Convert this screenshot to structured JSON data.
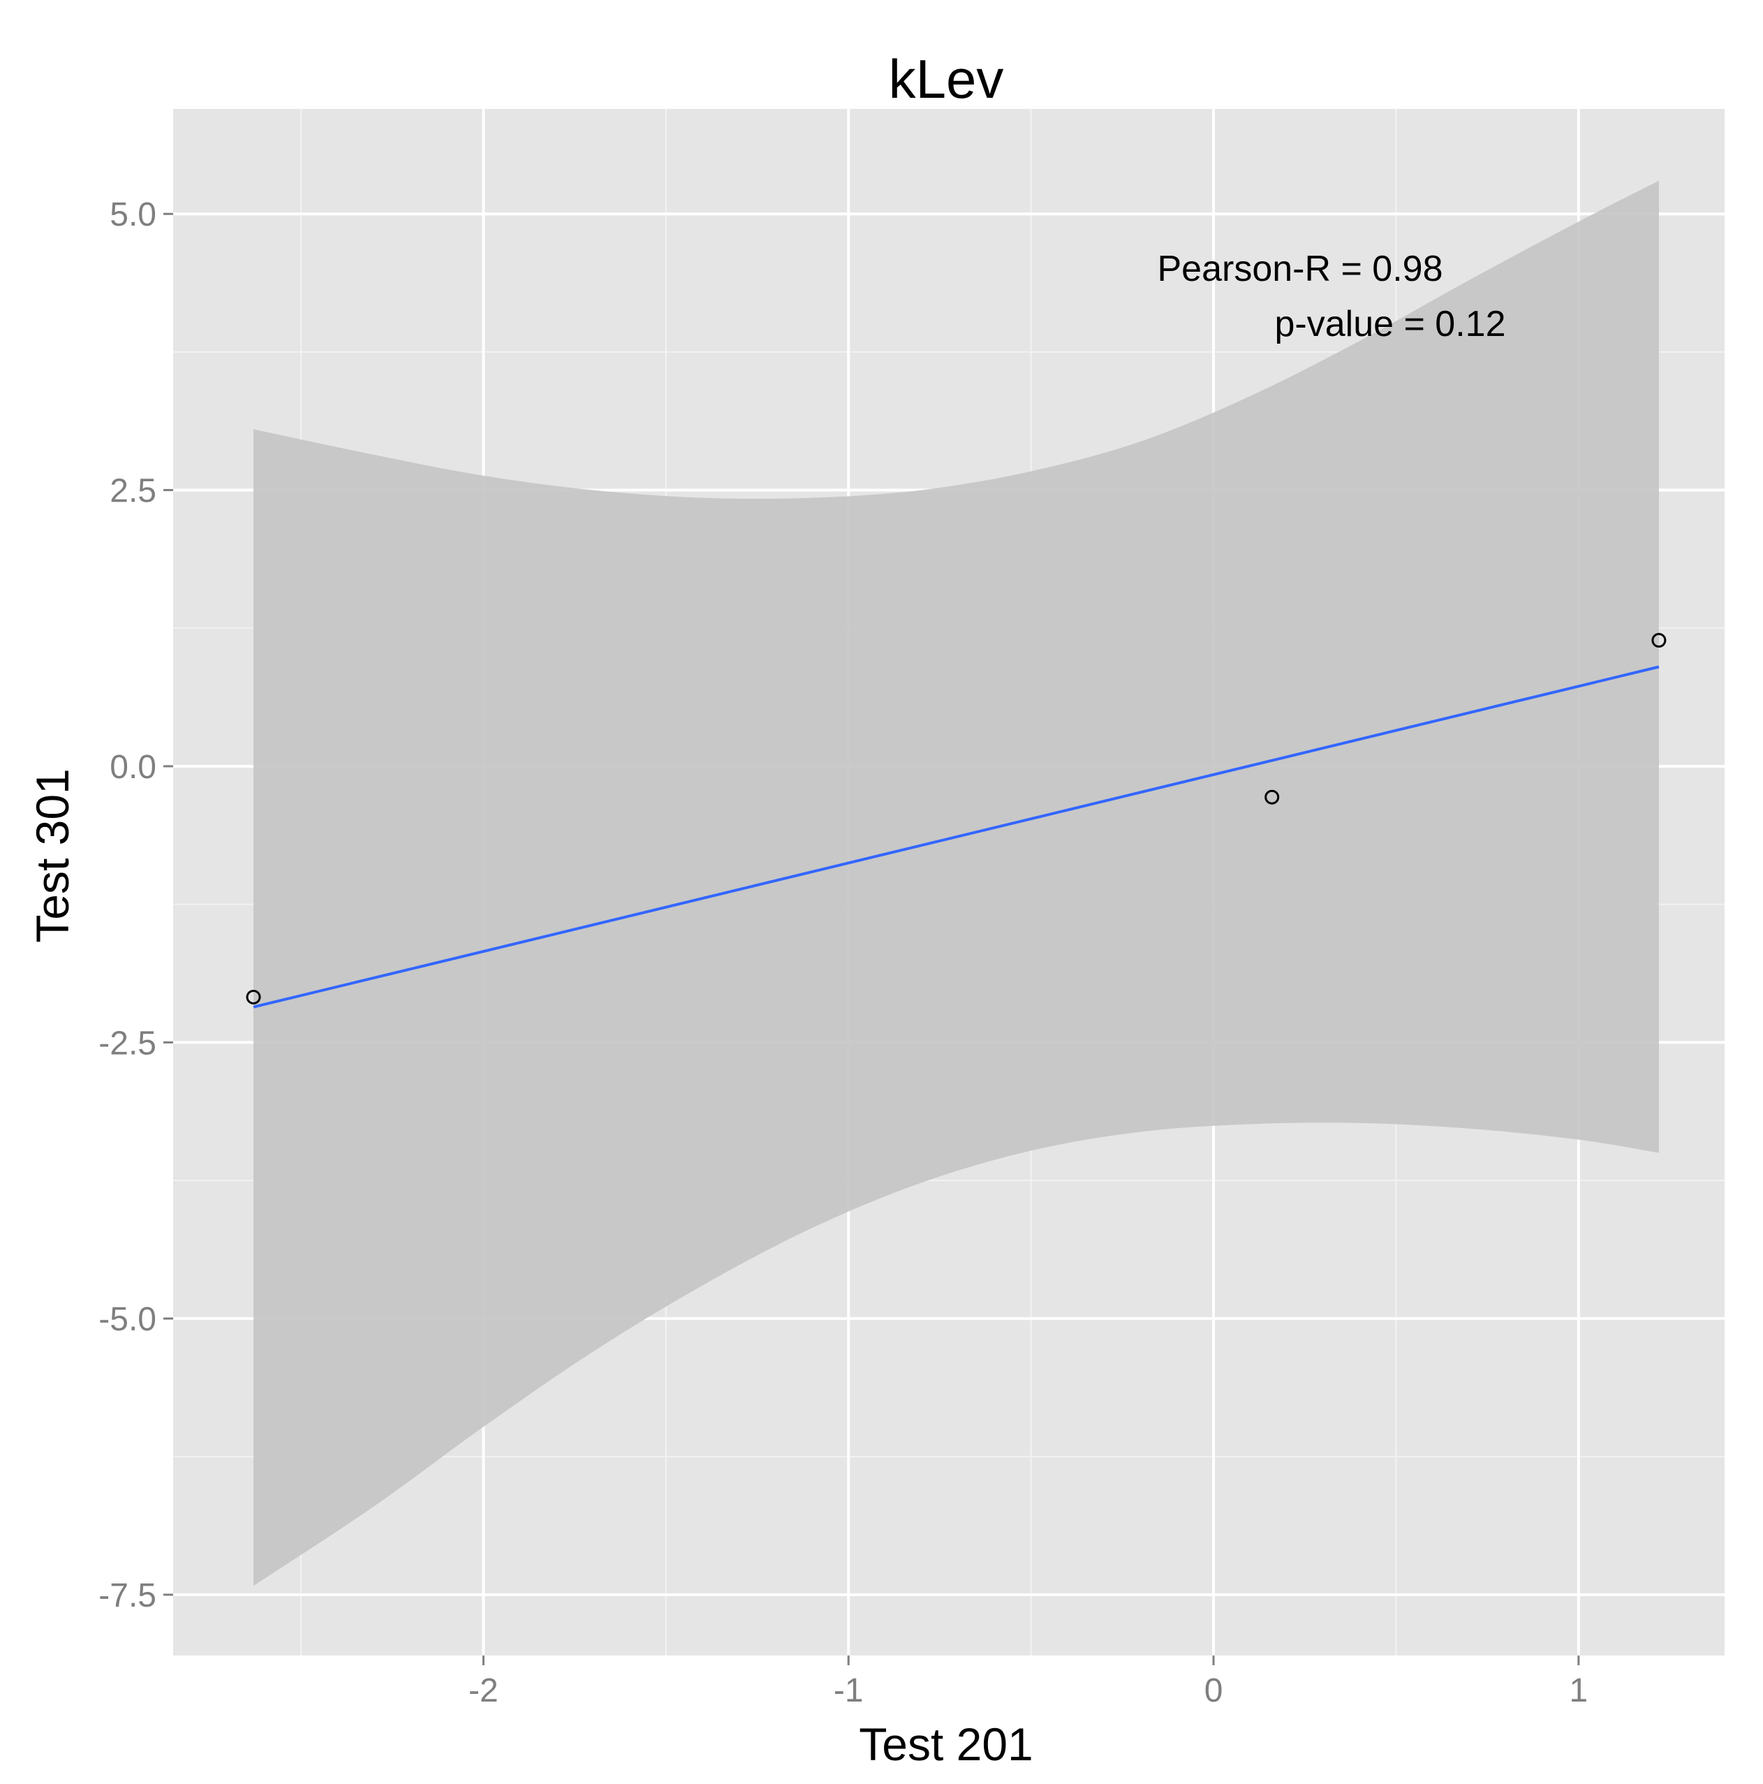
{
  "chart_data": {
    "type": "scatter",
    "title": "kLev",
    "xlabel": "Test 201",
    "ylabel": "Test 301",
    "xlim": [
      -2.85,
      1.4
    ],
    "ylim": [
      -8.05,
      5.95
    ],
    "x_ticks": [
      -2,
      -1,
      0,
      1
    ],
    "x_tick_labels": [
      "-2",
      "-1",
      "0",
      "1"
    ],
    "y_ticks": [
      5.0,
      2.5,
      0.0,
      -2.5,
      -5.0,
      -7.5
    ],
    "y_tick_labels": [
      "5.0",
      "2.5",
      "0.0",
      "-2.5",
      "-5.0",
      "-7.5"
    ],
    "grid": true,
    "points": [
      {
        "x": -2.63,
        "y": -2.09
      },
      {
        "x": 0.16,
        "y": -0.28
      },
      {
        "x": 1.22,
        "y": 1.14
      }
    ],
    "fit_line": {
      "x": [
        -2.63,
        1.22
      ],
      "y": [
        -2.18,
        0.9
      ]
    },
    "confidence_band": {
      "x": [
        -2.63,
        -2.3,
        -2.0,
        -1.7,
        -1.4,
        -1.1,
        -0.8,
        -0.5,
        -0.2,
        0.1,
        0.4,
        0.7,
        1.0,
        1.22
      ],
      "upper": [
        3.05,
        2.82,
        2.63,
        2.5,
        2.43,
        2.43,
        2.5,
        2.67,
        2.94,
        3.35,
        3.85,
        4.4,
        4.93,
        5.3
      ],
      "lower": [
        -7.42,
        -6.7,
        -5.98,
        -5.3,
        -4.7,
        -4.18,
        -3.77,
        -3.48,
        -3.31,
        -3.24,
        -3.23,
        -3.28,
        -3.38,
        -3.5
      ]
    },
    "annotations": [
      "Pearson-R = 0.98",
      "p-value = 0.12"
    ],
    "colors": {
      "panel": "#e5e5e5",
      "grid_major": "#ffffff",
      "grid_minor": "#f2f2f2",
      "band": "#c4c4c4",
      "line": "#3366ff",
      "point": "#000000"
    }
  }
}
